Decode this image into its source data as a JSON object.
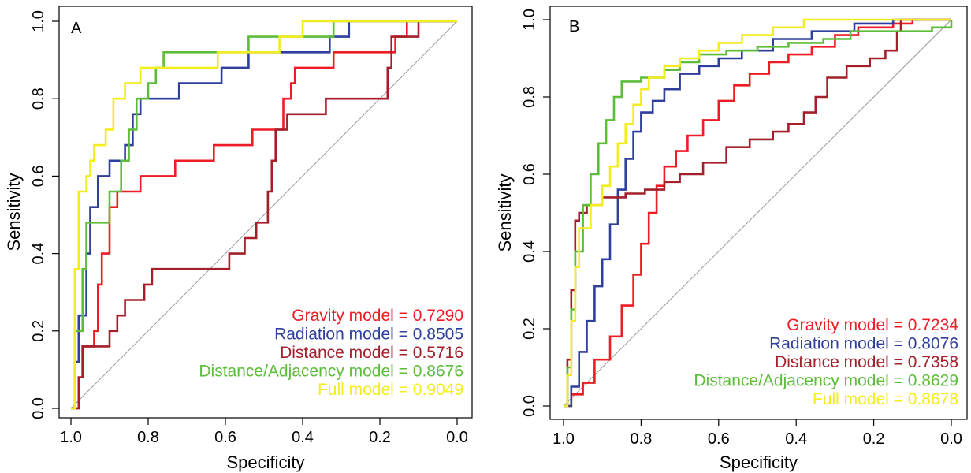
{
  "chart_data": [
    {
      "type": "line",
      "panel_label": "A",
      "xlabel": "Specificity",
      "ylabel": "Sensitivity",
      "xlim": [
        1.0,
        0.0
      ],
      "ylim": [
        0.0,
        1.0
      ],
      "x_ticks": [
        "1.0",
        "0.8",
        "0.6",
        "0.4",
        "0.2",
        "0.0"
      ],
      "y_ticks": [
        "0.0",
        "0.2",
        "0.4",
        "0.6",
        "0.8",
        "1.0"
      ],
      "diagonal": true,
      "legend_position": "bottom-right",
      "series": [
        {
          "name": "Gravity model",
          "auc": "0.7290",
          "color": "#ee1c25",
          "points": [
            [
              1.0,
              0.0
            ],
            [
              0.98,
              0.08
            ],
            [
              0.97,
              0.16
            ],
            [
              0.94,
              0.2
            ],
            [
              0.93,
              0.32
            ],
            [
              0.92,
              0.4
            ],
            [
              0.9,
              0.52
            ],
            [
              0.88,
              0.56
            ],
            [
              0.85,
              0.56
            ],
            [
              0.82,
              0.6
            ],
            [
              0.74,
              0.6
            ],
            [
              0.73,
              0.64
            ],
            [
              0.64,
              0.64
            ],
            [
              0.63,
              0.68
            ],
            [
              0.54,
              0.68
            ],
            [
              0.53,
              0.72
            ],
            [
              0.46,
              0.72
            ],
            [
              0.45,
              0.8
            ],
            [
              0.43,
              0.84
            ],
            [
              0.42,
              0.88
            ],
            [
              0.33,
              0.88
            ],
            [
              0.32,
              0.92
            ],
            [
              0.17,
              0.92
            ],
            [
              0.16,
              0.96
            ],
            [
              0.13,
              1.0
            ],
            [
              0.0,
              1.0
            ]
          ]
        },
        {
          "name": "Radiation model",
          "auc": "0.8505",
          "color": "#2e3f9e",
          "points": [
            [
              1.0,
              0.0
            ],
            [
              0.99,
              0.12
            ],
            [
              0.98,
              0.24
            ],
            [
              0.96,
              0.4
            ],
            [
              0.95,
              0.52
            ],
            [
              0.93,
              0.6
            ],
            [
              0.9,
              0.64
            ],
            [
              0.86,
              0.68
            ],
            [
              0.84,
              0.76
            ],
            [
              0.82,
              0.8
            ],
            [
              0.74,
              0.8
            ],
            [
              0.72,
              0.84
            ],
            [
              0.64,
              0.84
            ],
            [
              0.61,
              0.88
            ],
            [
              0.56,
              0.88
            ],
            [
              0.54,
              0.92
            ],
            [
              0.34,
              0.92
            ],
            [
              0.33,
              0.96
            ],
            [
              0.28,
              1.0
            ],
            [
              0.0,
              1.0
            ]
          ]
        },
        {
          "name": "Distance model",
          "auc": "0.5716",
          "color": "#a3202b",
          "points": [
            [
              1.0,
              0.0
            ],
            [
              0.98,
              0.08
            ],
            [
              0.97,
              0.16
            ],
            [
              0.92,
              0.16
            ],
            [
              0.9,
              0.2
            ],
            [
              0.88,
              0.24
            ],
            [
              0.86,
              0.28
            ],
            [
              0.82,
              0.28
            ],
            [
              0.81,
              0.32
            ],
            [
              0.79,
              0.36
            ],
            [
              0.61,
              0.36
            ],
            [
              0.59,
              0.4
            ],
            [
              0.55,
              0.44
            ],
            [
              0.52,
              0.48
            ],
            [
              0.49,
              0.56
            ],
            [
              0.48,
              0.64
            ],
            [
              0.47,
              0.72
            ],
            [
              0.44,
              0.76
            ],
            [
              0.36,
              0.76
            ],
            [
              0.34,
              0.8
            ],
            [
              0.2,
              0.8
            ],
            [
              0.18,
              0.88
            ],
            [
              0.17,
              0.96
            ],
            [
              0.1,
              1.0
            ],
            [
              0.0,
              1.0
            ]
          ]
        },
        {
          "name": "Distance/Adjacency model",
          "auc": "0.8676",
          "color": "#5dbd3a",
          "points": [
            [
              1.0,
              0.0
            ],
            [
              0.99,
              0.2
            ],
            [
              0.97,
              0.36
            ],
            [
              0.96,
              0.48
            ],
            [
              0.92,
              0.48
            ],
            [
              0.9,
              0.56
            ],
            [
              0.87,
              0.64
            ],
            [
              0.85,
              0.72
            ],
            [
              0.83,
              0.8
            ],
            [
              0.8,
              0.84
            ],
            [
              0.78,
              0.88
            ],
            [
              0.76,
              0.92
            ],
            [
              0.56,
              0.92
            ],
            [
              0.54,
              0.96
            ],
            [
              0.34,
              0.96
            ],
            [
              0.32,
              1.0
            ],
            [
              0.0,
              1.0
            ]
          ]
        },
        {
          "name": "Full model",
          "auc": "0.9049",
          "color": "#f3ec1f",
          "points": [
            [
              1.0,
              0.0
            ],
            [
              0.99,
              0.36
            ],
            [
              0.98,
              0.56
            ],
            [
              0.96,
              0.6
            ],
            [
              0.95,
              0.64
            ],
            [
              0.94,
              0.68
            ],
            [
              0.91,
              0.72
            ],
            [
              0.89,
              0.8
            ],
            [
              0.86,
              0.84
            ],
            [
              0.82,
              0.88
            ],
            [
              0.78,
              0.88
            ],
            [
              0.7,
              0.88
            ],
            [
              0.62,
              0.92
            ],
            [
              0.52,
              0.92
            ],
            [
              0.46,
              0.96
            ],
            [
              0.4,
              1.0
            ],
            [
              0.0,
              1.0
            ]
          ]
        }
      ]
    },
    {
      "type": "line",
      "panel_label": "B",
      "xlabel": "Specificity",
      "ylabel": "Sensitivity",
      "xlim": [
        1.0,
        0.0
      ],
      "ylim": [
        0.0,
        1.0
      ],
      "x_ticks": [
        "1.0",
        "0.8",
        "0.6",
        "0.4",
        "0.2",
        "0.0"
      ],
      "y_ticks": [
        "0.0",
        "0.2",
        "0.4",
        "0.6",
        "0.8",
        "1.0"
      ],
      "diagonal": true,
      "legend_position": "bottom-right",
      "series": [
        {
          "name": "Gravity model",
          "auc": "0.7234",
          "color": "#ee1c25",
          "points": [
            [
              1.0,
              0.0
            ],
            [
              0.98,
              0.03
            ],
            [
              0.95,
              0.06
            ],
            [
              0.92,
              0.12
            ],
            [
              0.88,
              0.18
            ],
            [
              0.85,
              0.26
            ],
            [
              0.82,
              0.34
            ],
            [
              0.8,
              0.42
            ],
            [
              0.78,
              0.5
            ],
            [
              0.76,
              0.57
            ],
            [
              0.74,
              0.62
            ],
            [
              0.71,
              0.66
            ],
            [
              0.68,
              0.7
            ],
            [
              0.64,
              0.74
            ],
            [
              0.6,
              0.79
            ],
            [
              0.56,
              0.83
            ],
            [
              0.52,
              0.86
            ],
            [
              0.47,
              0.89
            ],
            [
              0.42,
              0.91
            ],
            [
              0.36,
              0.93
            ],
            [
              0.3,
              0.96
            ],
            [
              0.24,
              0.98
            ],
            [
              0.15,
              0.99
            ],
            [
              0.1,
              1.0
            ],
            [
              0.0,
              1.0
            ]
          ]
        },
        {
          "name": "Radiation model",
          "auc": "0.8076",
          "color": "#2e3f9e",
          "points": [
            [
              1.0,
              0.0
            ],
            [
              0.98,
              0.05
            ],
            [
              0.96,
              0.14
            ],
            [
              0.94,
              0.22
            ],
            [
              0.92,
              0.31
            ],
            [
              0.9,
              0.38
            ],
            [
              0.88,
              0.47
            ],
            [
              0.86,
              0.56
            ],
            [
              0.84,
              0.64
            ],
            [
              0.82,
              0.71
            ],
            [
              0.8,
              0.76
            ],
            [
              0.77,
              0.79
            ],
            [
              0.74,
              0.82
            ],
            [
              0.7,
              0.86
            ],
            [
              0.65,
              0.88
            ],
            [
              0.6,
              0.9
            ],
            [
              0.54,
              0.92
            ],
            [
              0.46,
              0.95
            ],
            [
              0.36,
              0.97
            ],
            [
              0.25,
              0.99
            ],
            [
              0.15,
              1.0
            ],
            [
              0.0,
              1.0
            ]
          ]
        },
        {
          "name": "Distance model",
          "auc": "0.7358",
          "color": "#a3202b",
          "points": [
            [
              1.0,
              0.0
            ],
            [
              0.99,
              0.12
            ],
            [
              0.98,
              0.3
            ],
            [
              0.97,
              0.48
            ],
            [
              0.96,
              0.5
            ],
            [
              0.94,
              0.52
            ],
            [
              0.9,
              0.54
            ],
            [
              0.84,
              0.55
            ],
            [
              0.79,
              0.56
            ],
            [
              0.74,
              0.58
            ],
            [
              0.7,
              0.6
            ],
            [
              0.64,
              0.63
            ],
            [
              0.58,
              0.67
            ],
            [
              0.52,
              0.69
            ],
            [
              0.46,
              0.71
            ],
            [
              0.42,
              0.73
            ],
            [
              0.38,
              0.76
            ],
            [
              0.35,
              0.8
            ],
            [
              0.32,
              0.85
            ],
            [
              0.27,
              0.88
            ],
            [
              0.21,
              0.9
            ],
            [
              0.17,
              0.92
            ],
            [
              0.14,
              0.97
            ],
            [
              0.13,
              1.0
            ],
            [
              0.0,
              1.0
            ]
          ]
        },
        {
          "name": "Distance/Adjacency model",
          "auc": "0.8629",
          "color": "#5dbd3a",
          "points": [
            [
              1.0,
              0.0
            ],
            [
              0.99,
              0.1
            ],
            [
              0.98,
              0.25
            ],
            [
              0.97,
              0.4
            ],
            [
              0.95,
              0.52
            ],
            [
              0.93,
              0.6
            ],
            [
              0.91,
              0.68
            ],
            [
              0.89,
              0.74
            ],
            [
              0.87,
              0.8
            ],
            [
              0.85,
              0.84
            ],
            [
              0.8,
              0.85
            ],
            [
              0.74,
              0.87
            ],
            [
              0.7,
              0.89
            ],
            [
              0.65,
              0.91
            ],
            [
              0.58,
              0.92
            ],
            [
              0.5,
              0.93
            ],
            [
              0.42,
              0.94
            ],
            [
              0.33,
              0.95
            ],
            [
              0.26,
              0.97
            ],
            [
              0.05,
              0.98
            ],
            [
              0.0,
              1.0
            ]
          ]
        },
        {
          "name": "Full model",
          "auc": "0.8678",
          "color": "#f3ec1f",
          "points": [
            [
              1.0,
              0.0
            ],
            [
              0.99,
              0.08
            ],
            [
              0.98,
              0.22
            ],
            [
              0.97,
              0.36
            ],
            [
              0.96,
              0.46
            ],
            [
              0.93,
              0.52
            ],
            [
              0.9,
              0.57
            ],
            [
              0.88,
              0.62
            ],
            [
              0.86,
              0.68
            ],
            [
              0.84,
              0.73
            ],
            [
              0.82,
              0.78
            ],
            [
              0.8,
              0.82
            ],
            [
              0.78,
              0.85
            ],
            [
              0.74,
              0.88
            ],
            [
              0.7,
              0.9
            ],
            [
              0.65,
              0.92
            ],
            [
              0.6,
              0.94
            ],
            [
              0.54,
              0.96
            ],
            [
              0.46,
              0.98
            ],
            [
              0.38,
              1.0
            ],
            [
              0.0,
              1.0
            ]
          ]
        }
      ]
    }
  ]
}
